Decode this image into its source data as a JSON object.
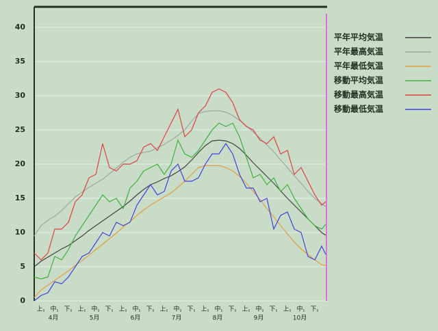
{
  "chart_data": {
    "type": "line",
    "x": [
      0,
      5,
      10,
      15,
      20,
      25,
      30,
      35,
      40,
      45,
      50,
      55,
      60,
      65,
      70,
      75,
      80,
      85,
      90,
      95,
      100,
      105,
      110,
      115,
      120,
      125,
      130,
      135,
      140,
      145,
      150,
      155,
      160,
      165,
      170,
      175,
      180,
      185,
      190,
      195,
      200,
      205,
      210,
      213
    ],
    "xlim": [
      0,
      214
    ],
    "xticks": [
      {
        "value": 4,
        "label": "上"
      },
      {
        "value": 14,
        "label": "中"
      },
      {
        "value": 24,
        "label": "下"
      },
      {
        "value": 34,
        "label": "上"
      },
      {
        "value": 44,
        "label": "中"
      },
      {
        "value": 54,
        "label": "下"
      },
      {
        "value": 64,
        "label": "上"
      },
      {
        "value": 74,
        "label": "中"
      },
      {
        "value": 84,
        "label": "下"
      },
      {
        "value": 94,
        "label": "上"
      },
      {
        "value": 104,
        "label": "中"
      },
      {
        "value": 114,
        "label": "下"
      },
      {
        "value": 124,
        "label": "上"
      },
      {
        "value": 134,
        "label": "中"
      },
      {
        "value": 144,
        "label": "下"
      },
      {
        "value": 154,
        "label": "上"
      },
      {
        "value": 164,
        "label": "中"
      },
      {
        "value": 174,
        "label": "下"
      },
      {
        "value": 184,
        "label": "上"
      },
      {
        "value": 194,
        "label": "中"
      },
      {
        "value": 204,
        "label": "下"
      }
    ],
    "month_labels": [
      {
        "value": 14,
        "label": "4月"
      },
      {
        "value": 44,
        "label": "5月"
      },
      {
        "value": 74,
        "label": "6月"
      },
      {
        "value": 104,
        "label": "7月"
      },
      {
        "value": 134,
        "label": "8月"
      },
      {
        "value": 164,
        "label": "9月"
      },
      {
        "value": 194,
        "label": "10月"
      }
    ],
    "ylim": [
      0,
      43
    ],
    "yticks": [
      0,
      5,
      10,
      15,
      20,
      25,
      30,
      35,
      40
    ],
    "grid": true,
    "legend": "top-right",
    "series": [
      {
        "name": "平年平均気温",
        "color": "#404040",
        "values": [
          5.0,
          5.8,
          6.4,
          7.0,
          7.6,
          8.1,
          8.8,
          9.5,
          10.3,
          11.0,
          11.7,
          12.4,
          13.1,
          13.8,
          14.6,
          15.5,
          16.3,
          17.0,
          17.4,
          17.9,
          18.3,
          18.9,
          19.6,
          20.6,
          21.7,
          22.7,
          23.4,
          23.5,
          23.4,
          23.0,
          22.3,
          21.3,
          20.2,
          19.2,
          18.2,
          17.2,
          16.1,
          15.0,
          14.0,
          13.0,
          12.0,
          11.0,
          10.0,
          9.6
        ]
      },
      {
        "name": "平年最高気温",
        "color": "#a0a8a0",
        "values": [
          9.5,
          11.0,
          11.8,
          12.4,
          13.2,
          14.2,
          15.2,
          15.9,
          16.6,
          17.2,
          17.8,
          18.6,
          19.4,
          20.3,
          21.0,
          21.5,
          21.7,
          21.9,
          22.4,
          22.9,
          23.5,
          24.2,
          25.0,
          26.3,
          27.4,
          27.7,
          27.8,
          27.8,
          27.6,
          27.1,
          26.4,
          25.6,
          24.7,
          23.8,
          22.8,
          21.8,
          20.6,
          19.5,
          18.3,
          17.2,
          16.0,
          15.0,
          14.2,
          13.8
        ]
      },
      {
        "name": "平年最低気温",
        "color": "#e0a040",
        "values": [
          0.5,
          1.6,
          2.3,
          3.0,
          3.7,
          4.4,
          5.2,
          5.9,
          6.7,
          7.5,
          8.3,
          9.1,
          9.9,
          10.8,
          11.6,
          12.5,
          13.3,
          14.0,
          14.6,
          15.2,
          15.8,
          16.6,
          17.5,
          18.5,
          19.5,
          19.8,
          19.8,
          19.8,
          19.5,
          19.0,
          18.2,
          17.2,
          16.0,
          14.8,
          13.5,
          12.3,
          11.0,
          9.8,
          8.6,
          7.6,
          6.8,
          6.0,
          5.3,
          5.2
        ]
      },
      {
        "name": "移動平均気温",
        "color": "#40b040",
        "values": [
          3.5,
          3.2,
          3.5,
          6.5,
          6.0,
          7.5,
          9.5,
          11.0,
          12.5,
          14.0,
          15.5,
          14.5,
          15.0,
          13.5,
          16.5,
          17.5,
          19.0,
          19.5,
          20.0,
          18.5,
          20.0,
          23.5,
          21.5,
          21.0,
          22.0,
          23.5,
          25.0,
          26.0,
          25.5,
          26.0,
          24.0,
          21.0,
          18.0,
          18.5,
          17.0,
          18.0,
          16.0,
          17.0,
          15.0,
          13.5,
          12.0,
          11.0,
          10.5,
          11.2
        ]
      },
      {
        "name": "移動最高気温",
        "color": "#e04040",
        "values": [
          7,
          6,
          7,
          10.5,
          10.5,
          11.5,
          14.5,
          15.5,
          18,
          18.5,
          23,
          19.5,
          19,
          20,
          20,
          20.5,
          22.5,
          23,
          22,
          24,
          26,
          28,
          24,
          25,
          27.5,
          28.5,
          30.5,
          31,
          30.5,
          29,
          26.5,
          25.5,
          25,
          23.5,
          23,
          24,
          21.5,
          22,
          18.5,
          19.5,
          17.5,
          15.5,
          14,
          14.5
        ]
      },
      {
        "name": "移動最低気温",
        "color": "#4040e0",
        "values": [
          0,
          0.8,
          1.2,
          2.8,
          2.5,
          3.5,
          5.0,
          6.5,
          7.0,
          8.5,
          10.0,
          9.5,
          11.5,
          11,
          11.5,
          14,
          15.5,
          17,
          15.5,
          16,
          19,
          20,
          17.5,
          17.5,
          18,
          20,
          21.5,
          21.5,
          23,
          21.5,
          18.5,
          16.5,
          16.5,
          14.5,
          15,
          10.5,
          12.5,
          13,
          10.5,
          10,
          6.5,
          6.0,
          8.0,
          6.8
        ]
      }
    ]
  }
}
